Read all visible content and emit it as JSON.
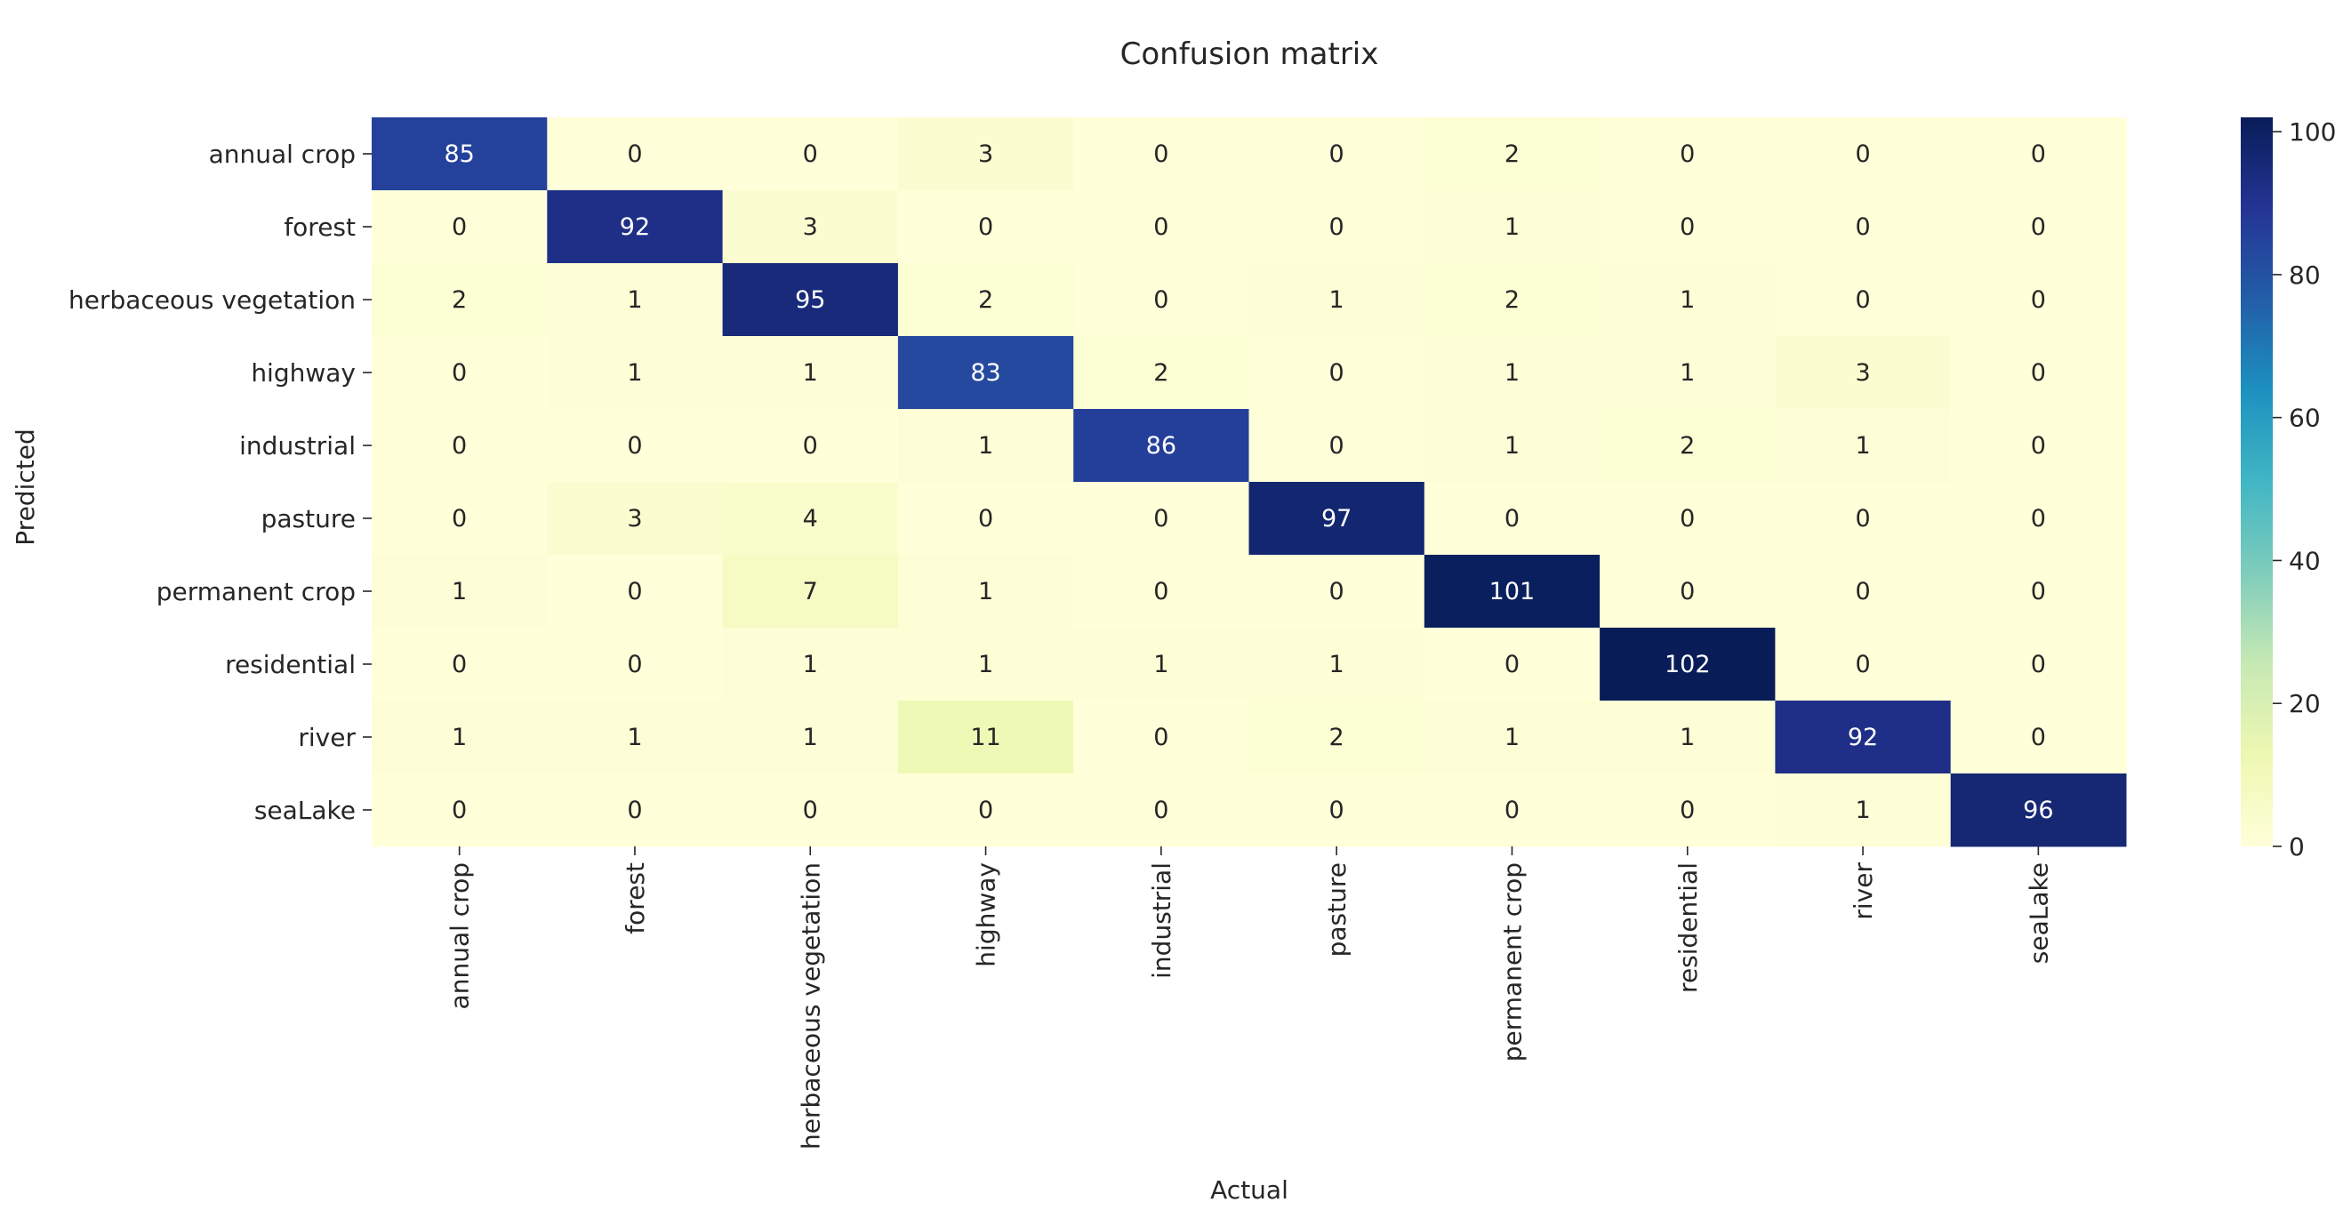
{
  "chart_data": {
    "type": "heatmap",
    "title": "Confusion matrix",
    "xlabel": "Actual",
    "ylabel": "Predicted",
    "row_labels": [
      "annual crop",
      "forest",
      "herbaceous vegetation",
      "highway",
      "industrial",
      "pasture",
      "permanent crop",
      "residential",
      "river",
      "seaLake"
    ],
    "col_labels": [
      "annual crop",
      "forest",
      "herbaceous vegetation",
      "highway",
      "industrial",
      "pasture",
      "permanent crop",
      "residential",
      "river",
      "seaLake"
    ],
    "values": [
      [
        85,
        0,
        0,
        3,
        0,
        0,
        2,
        0,
        0,
        0
      ],
      [
        0,
        92,
        3,
        0,
        0,
        0,
        1,
        0,
        0,
        0
      ],
      [
        2,
        1,
        95,
        2,
        0,
        1,
        2,
        1,
        0,
        0
      ],
      [
        0,
        1,
        1,
        83,
        2,
        0,
        1,
        1,
        3,
        0
      ],
      [
        0,
        0,
        0,
        1,
        86,
        0,
        1,
        2,
        1,
        0
      ],
      [
        0,
        3,
        4,
        0,
        0,
        97,
        0,
        0,
        0,
        0
      ],
      [
        1,
        0,
        7,
        1,
        0,
        0,
        101,
        0,
        0,
        0
      ],
      [
        0,
        0,
        1,
        1,
        1,
        1,
        0,
        102,
        0,
        0
      ],
      [
        1,
        1,
        1,
        11,
        0,
        2,
        1,
        1,
        92,
        0
      ],
      [
        0,
        0,
        0,
        0,
        0,
        0,
        0,
        0,
        1,
        96
      ]
    ],
    "colorbar": {
      "ticks": [
        0,
        20,
        40,
        60,
        80,
        100
      ],
      "range": [
        0,
        102
      ],
      "colormap": "YlGnBu"
    },
    "grid": false,
    "annotations": "cell values shown"
  }
}
